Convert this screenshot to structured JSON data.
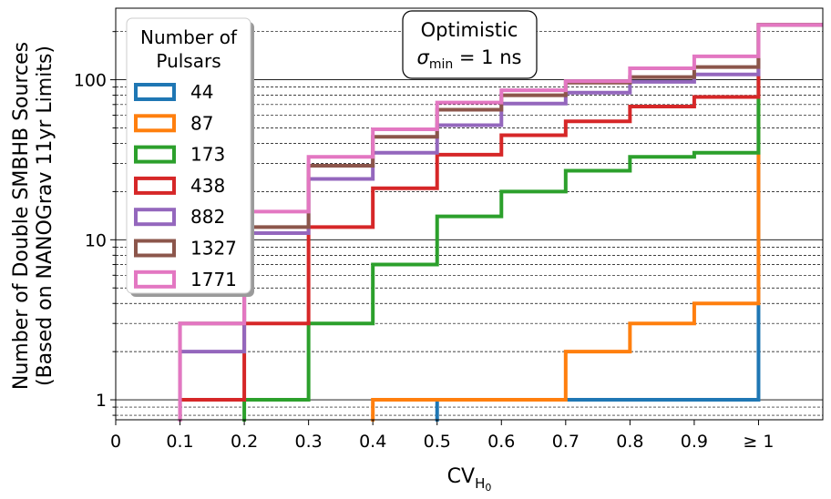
{
  "chart_data": {
    "type": "step-histogram",
    "annotation": {
      "line1": "Optimistic",
      "line2_symbol": "σ",
      "line2_sub": "min",
      "line2_rest": " = 1 ns"
    },
    "xlabel": {
      "main": "CV",
      "sub": "H",
      "subsub": "0"
    },
    "ylabel": [
      "Number of Double SMBHB Sources",
      "(Based on NANOGrav 11yr Limits)"
    ],
    "y_scale": "log",
    "ylim": [
      0.75,
      280
    ],
    "xlim": [
      0,
      1.1
    ],
    "x_ticks": [
      0,
      0.1,
      0.2,
      0.3,
      0.4,
      0.5,
      0.6,
      0.7,
      0.8,
      0.9,
      1.0
    ],
    "x_tick_labels": [
      "0",
      "0.1",
      "0.2",
      "0.3",
      "0.4",
      "0.5",
      "0.6",
      "0.7",
      "0.8",
      "0.9",
      "≥ 1"
    ],
    "y_ticks": [
      1,
      10,
      100
    ],
    "y_tick_labels": [
      "1",
      "10",
      "100"
    ],
    "grid": "horizontal major and minor (log)",
    "legend": {
      "title": [
        "Number of",
        "Pulsars"
      ],
      "placement": "top-left"
    },
    "bin_edges": [
      0,
      0.1,
      0.2,
      0.3,
      0.4,
      0.5,
      0.6,
      0.7,
      0.8,
      0.9,
      1.0,
      1.1
    ],
    "series": [
      {
        "name": "44",
        "color": "#1f77b4",
        "values": [
          0,
          0,
          0,
          0,
          0,
          1,
          1,
          1,
          1,
          1,
          220
        ]
      },
      {
        "name": "87",
        "color": "#ff7f0e",
        "values": [
          0,
          0,
          0,
          0,
          1,
          1,
          1,
          2,
          3,
          4,
          220
        ]
      },
      {
        "name": "173",
        "color": "#2ca02c",
        "values": [
          0,
          0,
          1,
          3,
          7,
          14,
          20,
          27,
          33,
          35,
          220
        ]
      },
      {
        "name": "438",
        "color": "#d62728",
        "values": [
          0,
          1,
          3,
          12,
          21,
          34,
          45,
          55,
          68,
          78,
          220
        ]
      },
      {
        "name": "882",
        "color": "#9467bd",
        "values": [
          0,
          2,
          11,
          24,
          35,
          52,
          71,
          83,
          97,
          108,
          220
        ]
      },
      {
        "name": "1327",
        "color": "#8c564b",
        "values": [
          0,
          3,
          12,
          29,
          44,
          65,
          80,
          96,
          104,
          120,
          220
        ]
      },
      {
        "name": "1771",
        "color": "#e377c2",
        "values": [
          0,
          3,
          15,
          33,
          49,
          72,
          86,
          98,
          118,
          140,
          220
        ]
      }
    ]
  }
}
